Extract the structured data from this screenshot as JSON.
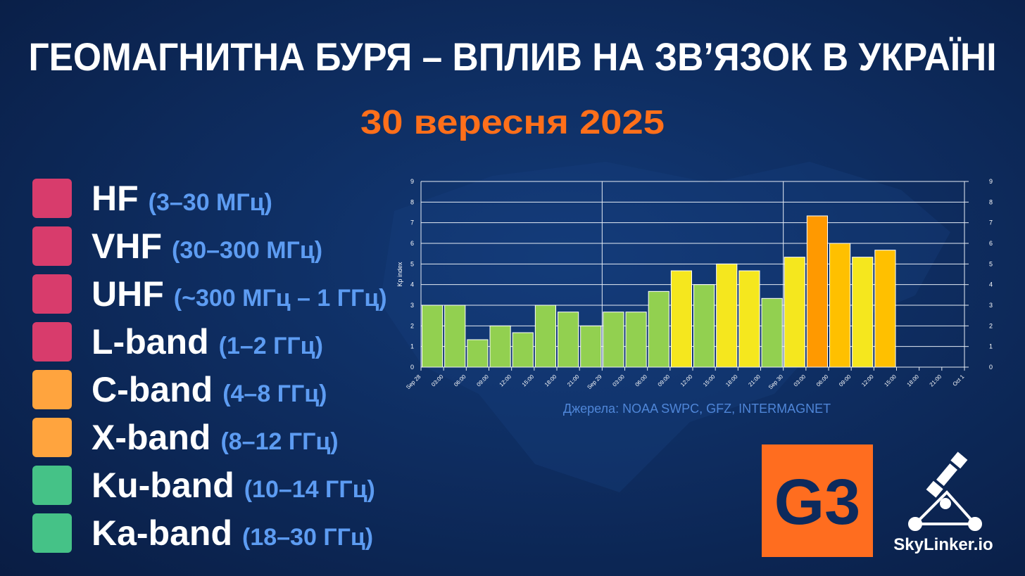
{
  "header": {
    "title": "ГЕОМАГНИТНА БУРЯ – ВПЛИВ НА ЗВ’ЯЗОК В УКРАЇНІ",
    "date": "30 вересня 2025"
  },
  "legend": [
    {
      "name": "HF",
      "range": "(3–30 МГц)",
      "color": "#d83c6c"
    },
    {
      "name": "VHF",
      "range": "(30–300 МГц)",
      "color": "#d83c6c"
    },
    {
      "name": "UHF",
      "range": "(~300 МГц – 1 ГГц)",
      "color": "#d83c6c"
    },
    {
      "name": "L-band",
      "range": "(1–2 ГГц)",
      "color": "#d83c6c"
    },
    {
      "name": "C-band",
      "range": "(4–8 ГГц)",
      "color": "#ffa43e"
    },
    {
      "name": "X-band",
      "range": "(8–12 ГГц)",
      "color": "#ffa43e"
    },
    {
      "name": "Ku-band",
      "range": "(10–14 ГГц)",
      "color": "#45c287"
    },
    {
      "name": "Ka-band",
      "range": "(18–30 ГГц)",
      "color": "#45c287"
    }
  ],
  "chart_data": {
    "type": "bar",
    "y_label": "Kp index",
    "categories": [
      "Sep 28",
      "03:00",
      "06:00",
      "09:00",
      "12:00",
      "15:00",
      "18:00",
      "21:00",
      "Sep 29",
      "03:00",
      "06:00",
      "09:00",
      "12:00",
      "15:00",
      "18:00",
      "21:00",
      "Sep 30",
      "03:00",
      "06:00",
      "09:00",
      "12:00",
      "15:00",
      "18:00",
      "21:00"
    ],
    "x_end_label": "Oct 1",
    "values": [
      3,
      3,
      1.33,
      2,
      1.67,
      3,
      2.67,
      2,
      2.67,
      2.67,
      3.67,
      4.67,
      4,
      5,
      4.67,
      3.33,
      5.33,
      7.33,
      6,
      5.33,
      5.67,
      null,
      null,
      null
    ],
    "colors": [
      "#92d050",
      "#92d050",
      "#92d050",
      "#92d050",
      "#92d050",
      "#92d050",
      "#92d050",
      "#92d050",
      "#92d050",
      "#92d050",
      "#92d050",
      "#f5e71e",
      "#92d050",
      "#f5e71e",
      "#f5e71e",
      "#92d050",
      "#f5e71e",
      "#ff9900",
      "#ffc000",
      "#f5e71e",
      "#ffc000",
      null,
      null,
      null
    ],
    "ylim": [
      0,
      9
    ],
    "yticks": [
      0,
      1,
      2,
      3,
      4,
      5,
      6,
      7,
      8,
      9
    ],
    "y2lim": [
      0,
      9
    ],
    "y2ticks": [
      0,
      1,
      2,
      3,
      4,
      5,
      6,
      7,
      8,
      9
    ],
    "grid": true,
    "source": "Джерела: NOAA SWPC, GFZ, INTERMAGNET"
  },
  "badge": "G3",
  "brand": "SkyLinker.io"
}
